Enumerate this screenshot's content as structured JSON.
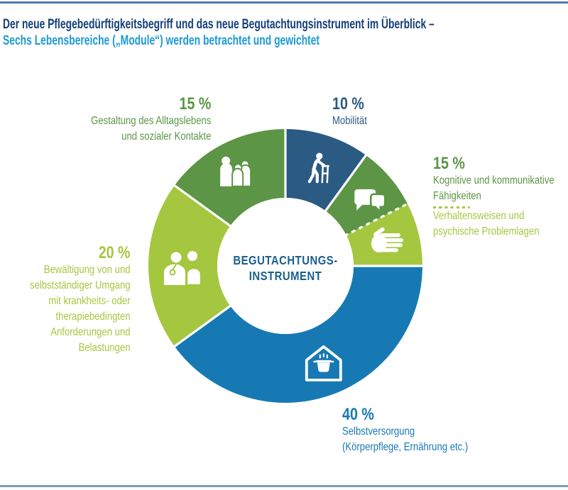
{
  "header": {
    "title_line1": "Der neue Pflegebedürftigkeitsbegriff und das neue Begutachtungsinstrument im Überblick –",
    "title_line2": "Sechs Lebensbereiche („Module“) werden betrachtet und gewichtet"
  },
  "colors": {
    "title_primary": "#143f7a",
    "title_secondary": "#1d9ad6",
    "top_rule": "#4d7cae",
    "bottom_rule": "#7f9dac",
    "dark_blue": "#2b5a83",
    "azure_blue": "#1779b3",
    "medium_green": "#5b9545",
    "light_green": "#a5c73f",
    "center_text": "#1b5e8f"
  },
  "chart_data": {
    "type": "pie",
    "subtype": "donut",
    "unit": "%",
    "title": "Begutachtungsinstrument – Sechs Lebensbereiche (Module) mit Gewichtung",
    "center_label_line1": "BEGUTACHTUNGS-",
    "center_label_line2": "INSTRUMENT",
    "segments": [
      {
        "name": "Mobilität",
        "value": 10,
        "display_pct": "10 %",
        "color": "#2b5a83",
        "icon": "person-with-walker-icon",
        "divider_after": "solid"
      },
      {
        "name": "Kognitive und kommunikative Fähigkeiten",
        "value": 7.5,
        "display_pct": "15 %",
        "color": "#5b9545",
        "icon": "speech-bubbles-icon",
        "divider_after": "dashed"
      },
      {
        "name": "Verhaltensweisen und psychische Problemlagen",
        "value": 7.5,
        "display_pct": "",
        "color": "#a5c73f",
        "icon": "hand-icon",
        "divider_after": "solid"
      },
      {
        "name": "Selbstversorgung (Körperpflege, Ernährung etc.)",
        "value": 40,
        "display_pct": "40 %",
        "color": "#1779b3",
        "icon": "house-cooking-pot-icon",
        "divider_after": "solid"
      },
      {
        "name": "Bewältigung von und selbstständiger Umgang mit krankheits- oder therapiebedingten Anforderungen und Belastungen",
        "value": 20,
        "display_pct": "20 %",
        "color": "#a5c73f",
        "icon": "doctor-patient-icon",
        "divider_after": "solid"
      },
      {
        "name": "Gestaltung des Alltagslebens und sozialer Kontakte",
        "value": 15,
        "display_pct": "15 %",
        "color": "#5b9545",
        "icon": "people-group-icon",
        "divider_after": "solid"
      }
    ]
  },
  "callouts": {
    "mobilitaet": {
      "pct": "10 %",
      "lines": [
        "Mobilität"
      ]
    },
    "kognitiv": {
      "pct": "15 %",
      "lines": [
        "Kognitive und kommunikative",
        "Fähigkeiten"
      ],
      "lines2": [
        "Verhaltensweisen und",
        "psychische Problemlagen"
      ]
    },
    "selbstversorgung": {
      "pct": "40 %",
      "lines": [
        "Selbstversorgung",
        "(Körperpflege, Ernährung etc.)"
      ]
    },
    "bewaeltigung": {
      "pct": "20 %",
      "lines": [
        "Bewältigung von und",
        "selbstständiger Umgang",
        "mit krankheits- oder",
        "therapiebedingten",
        "Anforderungen und",
        "Belastungen"
      ]
    },
    "gestaltung": {
      "pct": "15 %",
      "lines": [
        "Gestaltung des Alltagslebens",
        "und sozialer Kontakte"
      ]
    }
  }
}
